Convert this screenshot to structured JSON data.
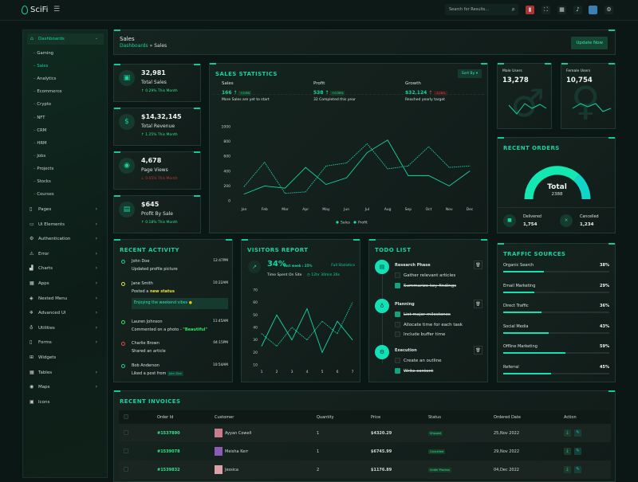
{
  "app": {
    "brand": "SciFi",
    "search_placeholder": "Search for Results..."
  },
  "sidebar": {
    "items": [
      {
        "label": "Dashboards",
        "icon": "home-icon",
        "expanded": true
      },
      {
        "label": "Pages",
        "icon": "file-icon"
      },
      {
        "label": "Ui Elements",
        "icon": "box-icon"
      },
      {
        "label": "Authentication",
        "icon": "gear-icon"
      },
      {
        "label": "Error",
        "icon": "warning-icon"
      },
      {
        "label": "Charts",
        "icon": "chart-icon"
      },
      {
        "label": "Apps",
        "icon": "grid-icon"
      },
      {
        "label": "Nested Menu",
        "icon": "layers-icon"
      },
      {
        "label": "Advanced UI",
        "icon": "snowflake-icon"
      },
      {
        "label": "Utilities",
        "icon": "badge-icon"
      },
      {
        "label": "Forms",
        "icon": "file-icon"
      },
      {
        "label": "Widgets",
        "icon": "gift-icon"
      },
      {
        "label": "Tables",
        "icon": "table-icon"
      },
      {
        "label": "Maps",
        "icon": "map-icon"
      },
      {
        "label": "Icons",
        "icon": "icons-icon"
      }
    ],
    "sub": [
      "Gaming",
      "Sales",
      "Analytics",
      "Ecommerce",
      "Crypto",
      "NFT",
      "CRM",
      "HRM",
      "Jobs",
      "Projects",
      "Stocks",
      "Courses"
    ],
    "active_sub": "Sales"
  },
  "page": {
    "title": "Sales",
    "breadcrumb": [
      "Dashboards",
      "Sales"
    ],
    "update_button": "Update Now"
  },
  "stats": [
    {
      "value": "32,981",
      "label": "Total Sales",
      "change": "0.29% This Month",
      "dir": "up",
      "icon": "briefcase-icon"
    },
    {
      "value": "$14,32,145",
      "label": "Total Revenue",
      "change": "1.25% This Month",
      "dir": "up",
      "icon": "dollar-icon"
    },
    {
      "value": "4,678",
      "label": "Page Views",
      "change": "0.05% This Month",
      "dir": "down",
      "icon": "eye-icon"
    },
    {
      "value": "$645",
      "label": "Profit By Sale",
      "change": "0.18% This Month",
      "dir": "up",
      "icon": "wallet-icon"
    }
  ],
  "sales_stats": {
    "title": "SALES STATISTICS",
    "sort_label": "Sort By",
    "kpis": [
      {
        "label": "Sales",
        "value": "166",
        "badge": "+0.9%",
        "note": "More Sales are yet to start",
        "dir": "up"
      },
      {
        "label": "Profit",
        "value": "538",
        "badge": "+0.39%",
        "note": "32 Completed this year",
        "dir": "up"
      },
      {
        "label": "Growth",
        "value": "$32,124",
        "badge": "-0.16%",
        "note": "Reached yearly target",
        "dir": "down"
      }
    ]
  },
  "chart_data": [
    {
      "type": "line",
      "categories": [
        "Jan",
        "Feb",
        "Mar",
        "Apr",
        "May",
        "Jun",
        "Jul",
        "Aug",
        "Sep",
        "Oct",
        "Nov",
        "Dec"
      ],
      "yticks": [
        "0",
        "200",
        "400",
        "600",
        "800",
        "1000"
      ],
      "ylim": [
        0,
        1000
      ],
      "legend": "bottom",
      "series": [
        {
          "name": "Sales",
          "values": [
            90,
            200,
            170,
            450,
            220,
            310,
            650,
            820,
            340,
            340,
            200,
            400
          ],
          "style": "solid"
        },
        {
          "name": "Profit",
          "values": [
            190,
            520,
            100,
            120,
            470,
            510,
            770,
            430,
            470,
            730,
            450,
            470
          ],
          "style": "dashed"
        }
      ]
    },
    {
      "type": "line",
      "categories": [
        "1",
        "2",
        "3",
        "4",
        "5",
        "6",
        "7"
      ],
      "yticks": [
        "10",
        "20",
        "30",
        "40",
        "50",
        "60",
        "70"
      ],
      "ylim": [
        10,
        70
      ],
      "series": [
        {
          "values": [
            25,
            50,
            30,
            55,
            20,
            45,
            30
          ],
          "style": "solid"
        },
        {
          "values": [
            35,
            25,
            40,
            30,
            45,
            35,
            60
          ],
          "style": "dashed"
        }
      ]
    }
  ],
  "users": {
    "male": {
      "label": "Male Users",
      "value": "13,278"
    },
    "female": {
      "label": "Female Users",
      "value": "10,754"
    }
  },
  "orders": {
    "title": "RECENT ORDERS",
    "total_label": "Total",
    "total": "2388",
    "delivered_label": "Delivered",
    "delivered": "1,754",
    "cancelled_label": "Cancelled",
    "cancelled": "1,234"
  },
  "activity": {
    "title": "RECENT ACTIVITY",
    "items": [
      {
        "name": "John Doe",
        "text": "Updated profile picture",
        "time": "12:47PM",
        "color": "#14d3a0"
      },
      {
        "name": "Jane Smith",
        "text": "Posted a ",
        "highlight": "new status",
        "time": "10:22AM",
        "color": "#e4e43a",
        "quote": "Enjoying the weekend vibes"
      },
      {
        "name": "Lauren Johnson",
        "text": "Commented on a photo - ",
        "highlight": "\"Beautiful\"",
        "time": "11:45AM",
        "color": "#2ee85c"
      },
      {
        "name": "Charlie Brown",
        "text": "Shared an article",
        "time": "04:15PM",
        "color": "#ef4444"
      },
      {
        "name": "Bob Anderson",
        "text": "Liked a post from ",
        "tag": "John Doe",
        "time": "10:54AM",
        "color": "#14d3a0"
      }
    ]
  },
  "visitors": {
    "title": "VISITORS REPORT",
    "percent": "34%",
    "last_week": "last week : 25%",
    "full_stats": "Full Statistics",
    "time_label": "Time Spent On Site",
    "time_value": "12hr 30min 26s"
  },
  "todo": {
    "title": "TODO LIST",
    "groups": [
      {
        "name": "Research Phase",
        "icon": "clipboard-icon",
        "tasks": [
          {
            "text": "Gather relevant articles",
            "done": false
          },
          {
            "text": "Summarize key findings",
            "done": true
          }
        ]
      },
      {
        "name": "Planning",
        "icon": "bulb-icon",
        "tasks": [
          {
            "text": "List major milestones",
            "done": true
          },
          {
            "text": "Allocate time for each task",
            "done": false
          },
          {
            "text": "Include buffer time",
            "done": false
          }
        ]
      },
      {
        "name": "Execution",
        "icon": "gear-icon",
        "tasks": [
          {
            "text": "Create an outline",
            "done": false
          },
          {
            "text": "Write content",
            "done": true
          }
        ]
      }
    ]
  },
  "traffic": {
    "title": "TRAFFIC SOURCES",
    "items": [
      {
        "label": "Organic Search",
        "pct": "38%",
        "value": 38
      },
      {
        "label": "Email Marketing",
        "pct": "29%",
        "value": 29
      },
      {
        "label": "Direct Traffic",
        "pct": "36%",
        "value": 36
      },
      {
        "label": "Social Media",
        "pct": "43%",
        "value": 43
      },
      {
        "label": "Offline Marketing",
        "pct": "59%",
        "value": 59
      },
      {
        "label": "Referral",
        "pct": "45%",
        "value": 45
      }
    ]
  },
  "invoices": {
    "title": "RECENT INVOICES",
    "columns": [
      "Order Id",
      "Customer",
      "Quantity",
      "Price",
      "Status",
      "Ordered Date",
      "Action"
    ],
    "rows": [
      {
        "id": "#1537890",
        "customer": "Ayyan Cowell",
        "qty": "1",
        "price": "$4320.29",
        "status": "Shipped",
        "date": "25,Nov 2022"
      },
      {
        "id": "#1539078",
        "customer": "Meisha Kerr",
        "qty": "1",
        "price": "$6745.99",
        "status": "Cancelled",
        "date": "29,Nov 2022"
      },
      {
        "id": "#1539832",
        "customer": "Jessica",
        "qty": "2",
        "price": "$1176.89",
        "status": "Under Process",
        "date": "04,Dec 2022"
      }
    ]
  },
  "colors": {
    "accent": "#14d3a0",
    "success": "#2ee88c",
    "danger": "#ef4444",
    "background": "#0b1714"
  }
}
